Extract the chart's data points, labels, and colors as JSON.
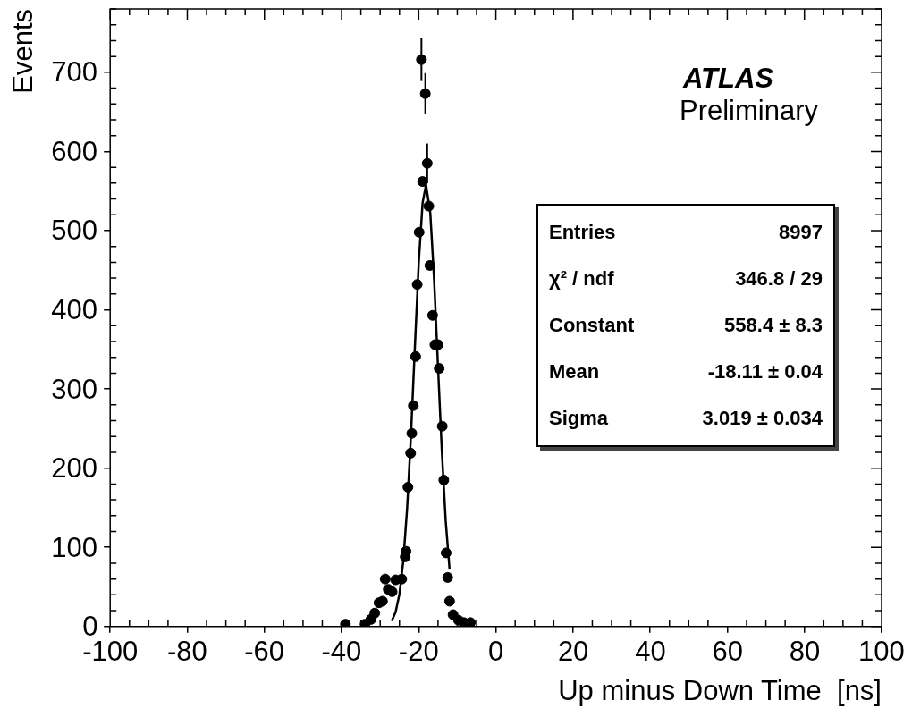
{
  "chart_data": {
    "type": "scatter",
    "xlabel": "Up minus Down Time  [ns]",
    "ylabel": "Events",
    "xlim": [
      -100,
      100
    ],
    "xticks": [
      -100,
      -80,
      -60,
      -40,
      -20,
      0,
      20,
      40,
      60,
      80,
      100
    ],
    "ylim": [
      0,
      780
    ],
    "yticks": [
      0,
      100,
      200,
      300,
      400,
      500,
      600,
      700
    ],
    "grid": false,
    "legend": false,
    "marker": "circle",
    "series": [
      {
        "type": "scatter",
        "color": "#000000",
        "x": [
          -39.0,
          -33.9,
          -32.4,
          -31.4,
          -30.3,
          -29.4,
          -28.7,
          -27.9,
          -26.9,
          -26.0,
          -24.4,
          -23.5,
          -23.3,
          -22.8,
          -22.1,
          -21.8,
          -21.4,
          -20.8,
          -20.4,
          -19.9,
          -19.3,
          -19.0,
          -18.3,
          -17.8,
          -17.4,
          -17.1,
          -16.4,
          -15.8,
          -15.0,
          -14.7,
          -13.9,
          -13.5,
          -12.9,
          -12.5,
          -12.0,
          -11.1,
          -9.7,
          -8.3,
          -6.6
        ],
        "values": [
          3,
          3,
          9,
          17,
          30,
          32,
          60,
          47,
          44,
          59,
          60,
          88,
          95,
          176,
          219,
          244,
          279,
          341,
          432,
          498,
          716,
          562,
          673,
          585,
          531,
          456,
          393,
          356,
          356,
          326,
          253,
          185,
          93,
          62,
          32,
          15,
          8,
          5,
          5
        ],
        "errors": [
          null,
          null,
          null,
          null,
          null,
          null,
          null,
          null,
          null,
          null,
          null,
          null,
          null,
          null,
          null,
          null,
          null,
          null,
          null,
          null,
          27,
          null,
          26,
          25,
          null,
          null,
          null,
          null,
          null,
          null,
          null,
          null,
          null,
          null,
          null,
          null,
          null,
          null,
          null
        ]
      },
      {
        "type": "line",
        "color": "#000000",
        "marker": "none",
        "x": [
          -27,
          -26,
          -25,
          -24,
          -23,
          -22,
          -21,
          -20,
          -19,
          -18.11,
          -17,
          -16,
          -15,
          -14,
          -13,
          -12
        ],
        "values": [
          7,
          18,
          41,
          83,
          150,
          243,
          353,
          459,
          535,
          558,
          522,
          437,
          328,
          221,
          133,
          72
        ]
      }
    ],
    "annotations": [
      "ATLAS",
      "Preliminary",
      "Entries",
      "8997",
      "χ² / ndf",
      "346.8 / 29",
      "Constant",
      "558.4 ± 8.3",
      "Mean",
      "-18.11 ± 0.04",
      "Sigma",
      "3.019 ± 0.034"
    ]
  }
}
